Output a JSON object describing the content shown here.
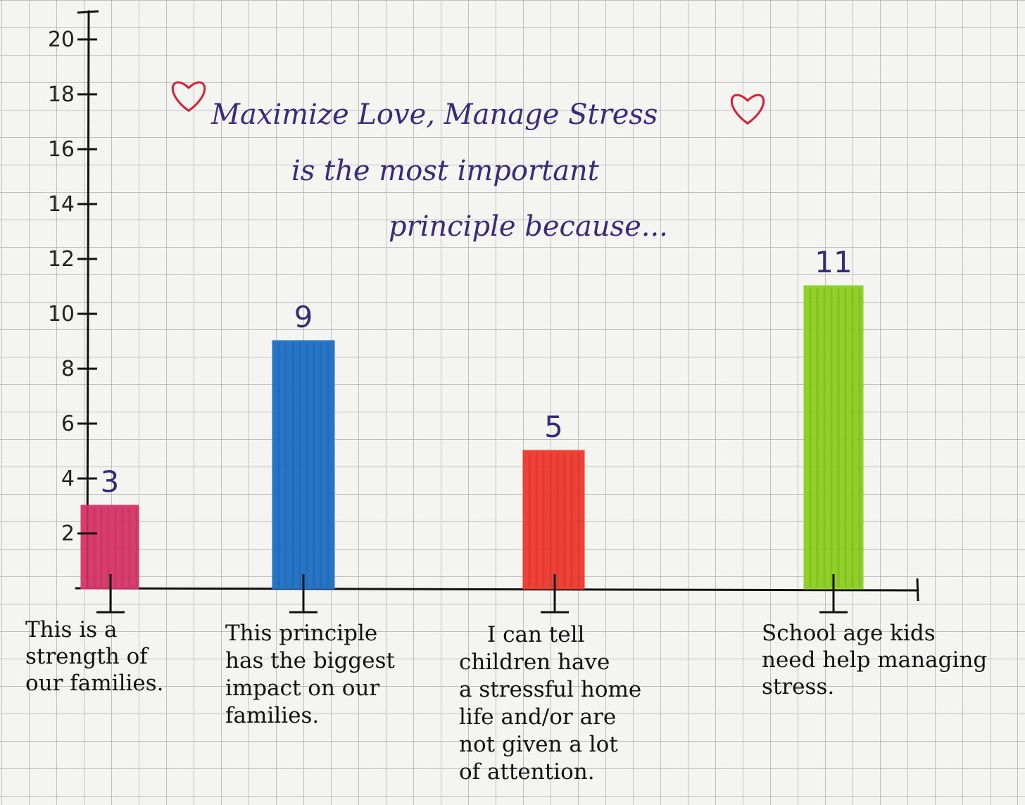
{
  "chart_data": {
    "type": "bar",
    "title": [
      "Maximize Love, Manage Stress",
      "is the most important",
      "principle because..."
    ],
    "categories": [
      [
        "This is a",
        "strength of",
        "our families."
      ],
      [
        "This principle",
        "has the biggest",
        "impact on our",
        "families."
      ],
      [
        "I can tell",
        "children have",
        "a stressful home",
        "life and/or are",
        "not given a lot",
        "of attention."
      ],
      [
        "School age kids",
        "need help managing",
        "stress."
      ]
    ],
    "values": [
      3,
      9,
      5,
      11
    ],
    "value_labels": [
      "3",
      "9",
      "5",
      "11"
    ],
    "colors": [
      "#d8346a",
      "#1d6fc4",
      "#f0382e",
      "#8ccf1e"
    ],
    "yticks": [
      "2",
      "4",
      "6",
      "8",
      "10",
      "12",
      "14",
      "16",
      "18",
      "20"
    ],
    "ylim": [
      0,
      20
    ],
    "grid": true,
    "heart_color": "#d81f36"
  }
}
